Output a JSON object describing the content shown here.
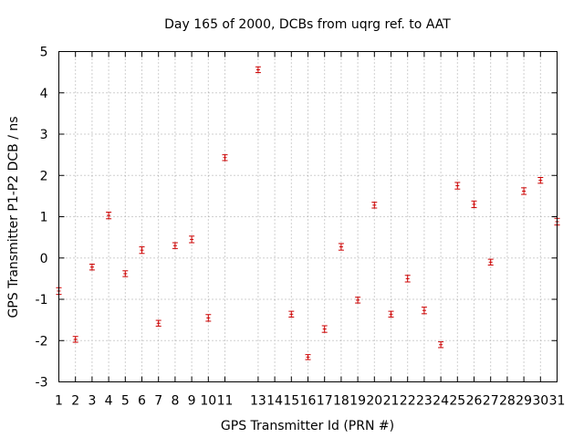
{
  "chart_data": {
    "type": "scatter",
    "title": "Day 165 of 2000, DCBs from uqrg ref. to AAT",
    "xlabel": "GPS Transmitter Id (PRN #)",
    "ylabel": "GPS Transmitter P1-P2 DCB / ns",
    "xlim": [
      1,
      31
    ],
    "ylim": [
      -3,
      5
    ],
    "x_ticks": [
      1,
      2,
      3,
      4,
      5,
      6,
      7,
      8,
      9,
      10,
      11,
      13,
      14,
      15,
      16,
      17,
      18,
      19,
      20,
      21,
      22,
      23,
      24,
      25,
      26,
      27,
      28,
      29,
      30,
      31
    ],
    "y_ticks": [
      -3,
      -2,
      -1,
      0,
      1,
      2,
      3,
      4,
      5
    ],
    "grid": true,
    "marker_color": "#cc0000",
    "series": [
      {
        "points": [
          {
            "x": 1,
            "y": -0.8,
            "err": 0.08
          },
          {
            "x": 2,
            "y": -1.97,
            "err": 0.07
          },
          {
            "x": 3,
            "y": -0.22,
            "err": 0.07
          },
          {
            "x": 4,
            "y": 1.03,
            "err": 0.08
          },
          {
            "x": 5,
            "y": -0.38,
            "err": 0.07
          },
          {
            "x": 6,
            "y": 0.19,
            "err": 0.08
          },
          {
            "x": 7,
            "y": -1.58,
            "err": 0.07
          },
          {
            "x": 8,
            "y": 0.3,
            "err": 0.07
          },
          {
            "x": 9,
            "y": 0.45,
            "err": 0.08
          },
          {
            "x": 10,
            "y": -1.45,
            "err": 0.08
          },
          {
            "x": 11,
            "y": 2.43,
            "err": 0.07
          },
          {
            "x": 13,
            "y": 4.56,
            "err": 0.07
          },
          {
            "x": 15,
            "y": -1.36,
            "err": 0.07
          },
          {
            "x": 16,
            "y": -2.4,
            "err": 0.06
          },
          {
            "x": 17,
            "y": -1.72,
            "err": 0.08
          },
          {
            "x": 18,
            "y": 0.27,
            "err": 0.08
          },
          {
            "x": 19,
            "y": -1.02,
            "err": 0.07
          },
          {
            "x": 20,
            "y": 1.28,
            "err": 0.07
          },
          {
            "x": 21,
            "y": -1.36,
            "err": 0.07
          },
          {
            "x": 22,
            "y": -0.5,
            "err": 0.08
          },
          {
            "x": 23,
            "y": -1.27,
            "err": 0.08
          },
          {
            "x": 24,
            "y": -2.1,
            "err": 0.07
          },
          {
            "x": 25,
            "y": 1.75,
            "err": 0.08
          },
          {
            "x": 26,
            "y": 1.3,
            "err": 0.08
          },
          {
            "x": 27,
            "y": -0.1,
            "err": 0.07
          },
          {
            "x": 29,
            "y": 1.62,
            "err": 0.08
          },
          {
            "x": 30,
            "y": 1.88,
            "err": 0.07
          },
          {
            "x": 31,
            "y": 0.88,
            "err": 0.08
          }
        ]
      }
    ]
  }
}
